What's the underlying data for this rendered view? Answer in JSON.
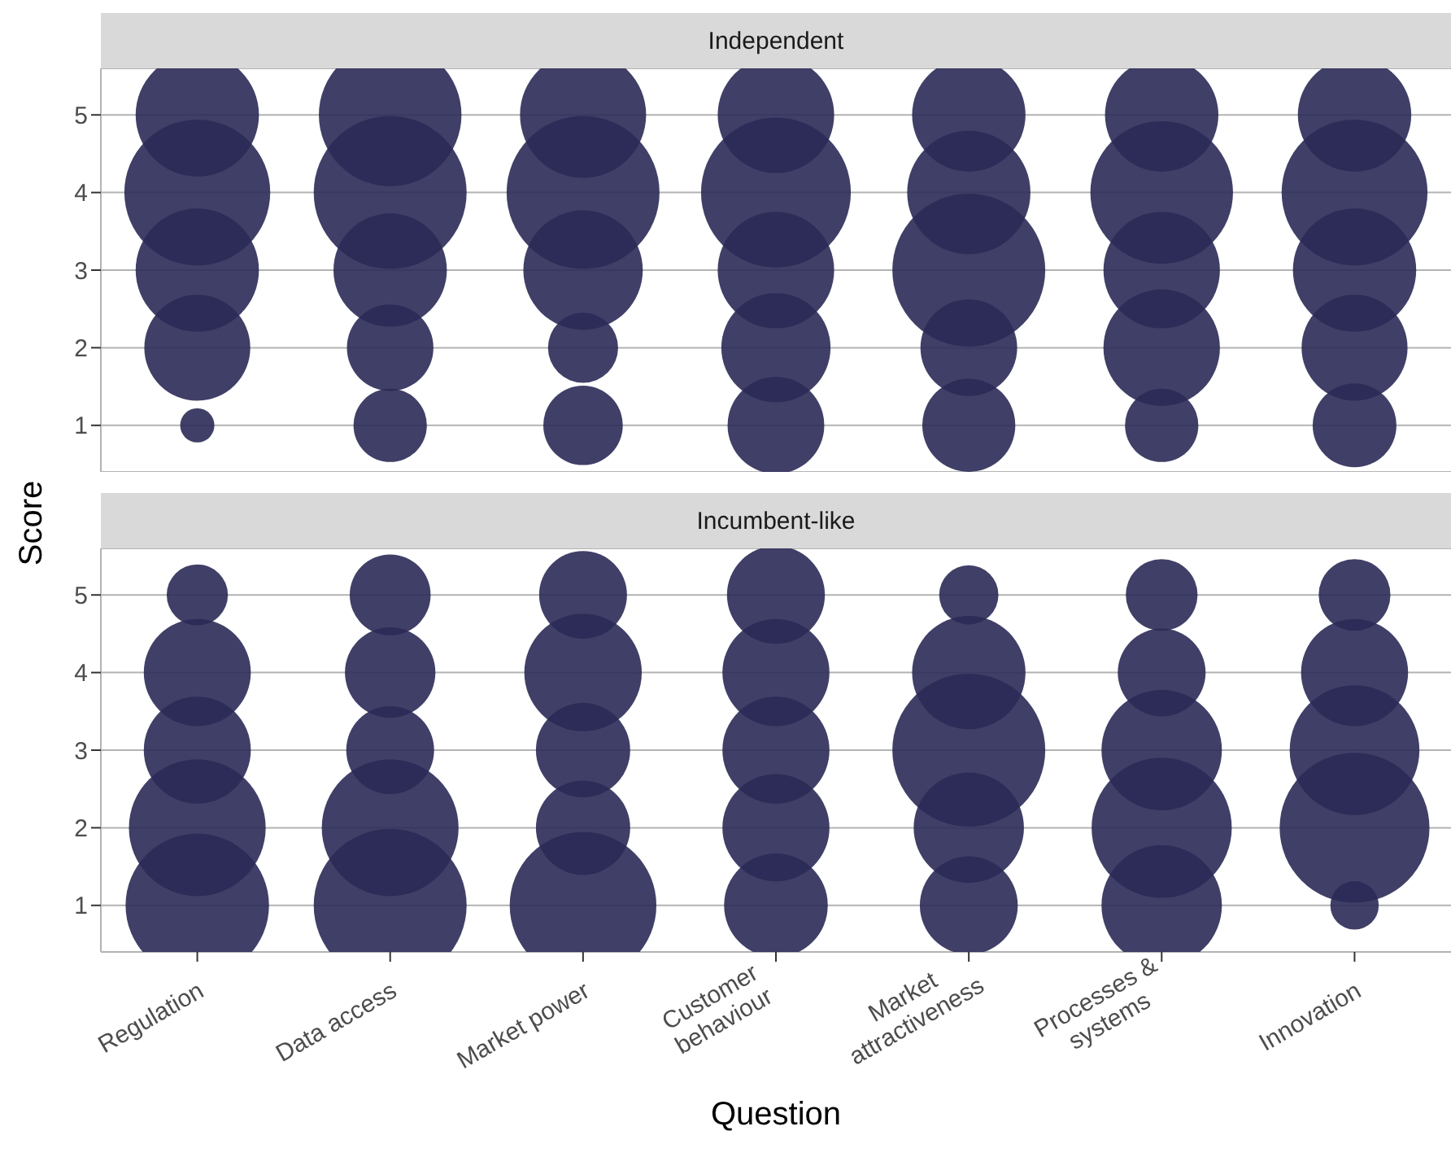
{
  "chart_data": [
    {
      "type": "bubble",
      "title": "Independent",
      "ylabel": "Score",
      "categories": [
        "Regulation",
        "Data access",
        "Market power",
        "Customer\nbehaviour",
        "Market\nattractiveness",
        "Processes &\nsystems",
        "Innovation"
      ],
      "ylim": [
        0.4,
        5.6
      ],
      "yticks": [
        1,
        2,
        3,
        4,
        5
      ],
      "grid": "y",
      "tick_labels": "y",
      "series": [
        {
          "color": "#2b2a57",
          "x": [
            "Regulation",
            "Regulation",
            "Regulation",
            "Regulation",
            "Regulation",
            "Data access",
            "Data access",
            "Data access",
            "Data access",
            "Data access",
            "Market power",
            "Market power",
            "Market power",
            "Market power",
            "Market power",
            "Customer\nbehaviour",
            "Customer\nbehaviour",
            "Customer\nbehaviour",
            "Customer\nbehaviour",
            "Customer\nbehaviour",
            "Market\nattractiveness",
            "Market\nattractiveness",
            "Market\nattractiveness",
            "Market\nattractiveness",
            "Market\nattractiveness",
            "Processes &\nsystems",
            "Processes &\nsystems",
            "Processes &\nsystems",
            "Processes &\nsystems",
            "Processes &\nsystems",
            "Innovation",
            "Innovation",
            "Innovation",
            "Innovation",
            "Innovation"
          ],
          "values": [
            5,
            4,
            3,
            2,
            1,
            5,
            4,
            3,
            2,
            1,
            5,
            4,
            3,
            2,
            1,
            5,
            4,
            3,
            2,
            1,
            5,
            4,
            3,
            2,
            1,
            5,
            4,
            3,
            2,
            1,
            5,
            4,
            3,
            2,
            1
          ],
          "sizes": [
            0.65,
            0.91,
            0.65,
            0.48,
            0.05,
            0.87,
            1,
            0.55,
            0.32,
            0.23,
            0.68,
            1,
            0.61,
            0.21,
            0.27,
            0.58,
            0.96,
            0.58,
            0.51,
            0.4,
            0.55,
            0.65,
            1,
            0.4,
            0.37,
            0.55,
            0.87,
            0.58,
            0.58,
            0.23,
            0.55,
            0.91,
            0.65,
            0.48,
            0.3
          ]
        }
      ]
    },
    {
      "type": "bubble",
      "title": "Incumbent-like",
      "xlabel": "Question",
      "categories": [
        "Regulation",
        "Data access",
        "Market power",
        "Customer\nbehaviour",
        "Market\nattractiveness",
        "Processes &\nsystems",
        "Innovation"
      ],
      "ylim": [
        0.4,
        5.6
      ],
      "yticks": [
        1,
        2,
        3,
        4,
        5
      ],
      "grid": "y",
      "series": [
        {
          "color": "#2b2a57",
          "x": [
            "Regulation",
            "Regulation",
            "Regulation",
            "Regulation",
            "Regulation",
            "Data access",
            "Data access",
            "Data access",
            "Data access",
            "Data access",
            "Market power",
            "Market power",
            "Market power",
            "Market power",
            "Market power",
            "Customer\nbehaviour",
            "Customer\nbehaviour",
            "Customer\nbehaviour",
            "Customer\nbehaviour",
            "Customer\nbehaviour",
            "Market\nattractiveness",
            "Market\nattractiveness",
            "Market\nattractiveness",
            "Market\nattractiveness",
            "Market\nattractiveness",
            "Processes &\nsystems",
            "Processes &\nsystems",
            "Processes &\nsystems",
            "Processes &\nsystems",
            "Processes &\nsystems",
            "Innovation",
            "Innovation",
            "Innovation",
            "Innovation",
            "Innovation"
          ],
          "values": [
            5,
            4,
            3,
            2,
            1,
            5,
            4,
            3,
            2,
            1,
            5,
            4,
            3,
            2,
            1,
            5,
            4,
            3,
            2,
            1,
            5,
            4,
            3,
            2,
            1,
            5,
            4,
            3,
            2,
            1,
            5,
            4,
            3,
            2,
            1
          ],
          "sizes": [
            0.16,
            0.49,
            0.49,
            0.8,
            0.88,
            0.28,
            0.35,
            0.33,
            0.8,
            1,
            0.33,
            0.59,
            0.38,
            0.38,
            0.92,
            0.41,
            0.49,
            0.49,
            0.49,
            0.46,
            0.15,
            0.55,
            1,
            0.52,
            0.41,
            0.22,
            0.33,
            0.62,
            0.84,
            0.62,
            0.22,
            0.49,
            0.72,
            0.96,
            0.1
          ]
        }
      ]
    }
  ]
}
